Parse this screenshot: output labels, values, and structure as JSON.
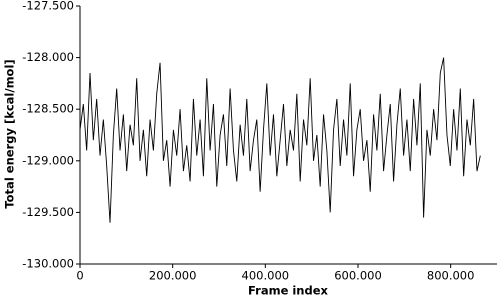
{
  "chart_data": {
    "type": "line",
    "xlabel": "Frame index",
    "ylabel": "Total energy [kcal/mol]",
    "xlim": [
      0,
      900000
    ],
    "xticks": [
      0,
      {
        "value": 200000,
        "label": "200.000"
      },
      {
        "value": 400000,
        "label": "400.000"
      },
      {
        "value": 600000,
        "label": "600.000"
      },
      {
        "value": 800000,
        "label": "800.000"
      }
    ],
    "ylim": [
      -130,
      -127.5
    ],
    "yticks": [
      {
        "value": -130,
        "label": "-130.000"
      },
      {
        "value": -129.5,
        "label": "-129.500"
      },
      {
        "value": -129,
        "label": "-129.000"
      },
      {
        "value": -128.5,
        "label": "-128.500"
      },
      {
        "value": -128,
        "label": "-128.000"
      },
      {
        "value": -127.5,
        "label": "-127.500"
      }
    ],
    "x": [
      0,
      7200,
      14400,
      21600,
      28800,
      36000,
      43200,
      50400,
      57600,
      64800,
      72000,
      79200,
      86400,
      93600,
      100800,
      108000,
      115200,
      122400,
      129600,
      136800,
      144000,
      151200,
      158400,
      165600,
      172800,
      180000,
      187200,
      194400,
      201600,
      208800,
      216000,
      223200,
      230400,
      237600,
      244800,
      252000,
      259200,
      266400,
      273600,
      280800,
      288000,
      295200,
      302400,
      309600,
      316800,
      324000,
      331200,
      338400,
      345600,
      352800,
      360000,
      367200,
      374400,
      381600,
      388800,
      396000,
      403200,
      410400,
      417600,
      424800,
      432000,
      439200,
      446400,
      453600,
      460800,
      468000,
      475200,
      482400,
      489600,
      496800,
      504000,
      511200,
      518400,
      525600,
      532800,
      540000,
      547200,
      554400,
      561600,
      568800,
      576000,
      583200,
      590400,
      597600,
      604800,
      612000,
      619200,
      626400,
      633600,
      640800,
      648000,
      655200,
      662400,
      669600,
      676800,
      684000,
      691200,
      698400,
      705600,
      712800,
      720000,
      727200,
      734400,
      741600,
      748800,
      756000,
      763200,
      770400,
      777600,
      784800,
      792000,
      799200,
      806400,
      813600,
      820800,
      828000,
      835200,
      842400,
      849600,
      856800,
      864000
    ],
    "series": [
      {
        "color": "#000000",
        "values": [
          -128.7,
          -128.45,
          -128.9,
          -128.15,
          -128.8,
          -128.4,
          -128.95,
          -128.6,
          -129.05,
          -129.6,
          -128.75,
          -128.3,
          -128.9,
          -128.55,
          -129.1,
          -128.65,
          -128.85,
          -128.2,
          -129.0,
          -128.7,
          -129.15,
          -128.6,
          -128.9,
          -128.35,
          -128.05,
          -129.0,
          -128.8,
          -129.25,
          -128.7,
          -128.95,
          -128.5,
          -129.1,
          -128.85,
          -129.2,
          -128.4,
          -128.95,
          -128.6,
          -129.15,
          -128.2,
          -128.9,
          -128.45,
          -129.25,
          -128.75,
          -128.55,
          -129.05,
          -128.3,
          -128.9,
          -129.2,
          -128.65,
          -128.95,
          -128.4,
          -129.1,
          -128.8,
          -128.6,
          -129.3,
          -128.7,
          -128.25,
          -128.95,
          -128.55,
          -129.15,
          -128.8,
          -128.45,
          -129.05,
          -128.7,
          -128.9,
          -128.35,
          -129.2,
          -128.6,
          -128.85,
          -128.2,
          -129.0,
          -128.75,
          -129.25,
          -128.55,
          -128.9,
          -129.5,
          -128.7,
          -128.4,
          -129.05,
          -128.6,
          -128.95,
          -128.25,
          -129.15,
          -128.7,
          -128.5,
          -129.0,
          -128.8,
          -129.3,
          -128.55,
          -128.9,
          -128.35,
          -129.1,
          -128.75,
          -128.45,
          -129.2,
          -128.65,
          -128.3,
          -128.95,
          -128.6,
          -129.1,
          -128.4,
          -128.85,
          -128.25,
          -129.55,
          -128.7,
          -128.95,
          -128.5,
          -128.8,
          -128.15,
          -128.0,
          -128.75,
          -129.05,
          -128.5,
          -128.9,
          -128.3,
          -129.15,
          -128.6,
          -128.85,
          -128.4,
          -129.1,
          -128.95
        ]
      }
    ]
  }
}
